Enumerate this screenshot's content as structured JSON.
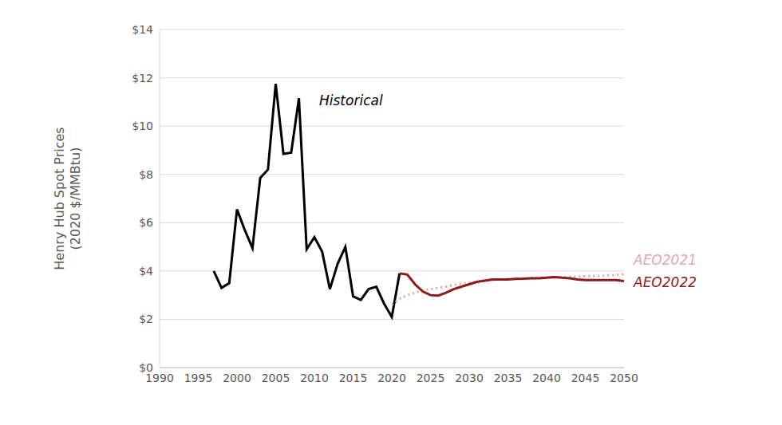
{
  "chart_data": {
    "type": "line",
    "ylabel": [
      "Henry Hub Spot Prices",
      "(2020 $/MMBtu)"
    ],
    "x": [
      1997,
      1998,
      1999,
      2000,
      2001,
      2002,
      2003,
      2004,
      2005,
      2006,
      2007,
      2008,
      2009,
      2010,
      2011,
      2012,
      2013,
      2014,
      2015,
      2016,
      2017,
      2018,
      2019,
      2020,
      2021,
      2022,
      2023,
      2024,
      2025,
      2026,
      2027,
      2028,
      2029,
      2030,
      2031,
      2032,
      2033,
      2034,
      2035,
      2036,
      2037,
      2038,
      2039,
      2040,
      2041,
      2042,
      2043,
      2044,
      2045,
      2046,
      2047,
      2048,
      2049,
      2050
    ],
    "series": [
      {
        "name": "Historical",
        "color": "#000000",
        "line_style": "solid",
        "values": [
          4.0,
          3.3,
          3.5,
          6.55,
          5.7,
          4.95,
          7.85,
          8.2,
          11.75,
          8.85,
          8.9,
          11.15,
          4.9,
          5.4,
          4.8,
          3.25,
          4.3,
          5.0,
          2.95,
          2.8,
          3.25,
          3.35,
          2.65,
          2.1,
          3.9,
          null,
          null,
          null,
          null,
          null,
          null,
          null,
          null,
          null,
          null,
          null,
          null,
          null,
          null,
          null,
          null,
          null,
          null,
          null,
          null,
          null,
          null,
          null,
          null,
          null,
          null,
          null,
          null,
          null
        ]
      },
      {
        "name": "AEO2021",
        "color": "#e8a3a9",
        "line_style": "dotted",
        "values": [
          null,
          null,
          null,
          null,
          null,
          null,
          null,
          null,
          null,
          null,
          null,
          null,
          null,
          null,
          null,
          null,
          null,
          null,
          null,
          null,
          null,
          null,
          null,
          2.6,
          2.85,
          3.0,
          3.1,
          3.2,
          3.25,
          3.3,
          3.35,
          3.42,
          3.48,
          3.52,
          3.56,
          3.6,
          3.62,
          3.65,
          3.67,
          3.68,
          3.7,
          3.7,
          3.72,
          3.73,
          3.74,
          3.75,
          3.76,
          3.77,
          3.78,
          3.8,
          3.8,
          3.82,
          3.84,
          3.87
        ]
      },
      {
        "name": "AEO2022",
        "color": "#8b1a1a",
        "line_style": "solid",
        "values": [
          null,
          null,
          null,
          null,
          null,
          null,
          null,
          null,
          null,
          null,
          null,
          null,
          null,
          null,
          null,
          null,
          null,
          null,
          null,
          null,
          null,
          null,
          null,
          null,
          3.9,
          3.85,
          3.45,
          3.15,
          3.0,
          2.98,
          3.1,
          3.25,
          3.35,
          3.45,
          3.55,
          3.6,
          3.65,
          3.65,
          3.65,
          3.67,
          3.68,
          3.7,
          3.7,
          3.72,
          3.75,
          3.72,
          3.7,
          3.65,
          3.62,
          3.62,
          3.62,
          3.62,
          3.62,
          3.58
        ]
      }
    ],
    "xlim": [
      1990,
      2050
    ],
    "xticks": [
      1990,
      1995,
      2000,
      2005,
      2010,
      2015,
      2020,
      2025,
      2030,
      2035,
      2040,
      2045,
      2050
    ],
    "ylim": [
      0,
      14
    ],
    "yticks": [
      {
        "value": 0,
        "label": "$0"
      },
      {
        "value": 2,
        "label": "$2"
      },
      {
        "value": 4,
        "label": "$4"
      },
      {
        "value": 6,
        "label": "$6"
      },
      {
        "value": 8,
        "label": "$8"
      },
      {
        "value": 10,
        "label": "$10"
      },
      {
        "value": 12,
        "label": "$12"
      },
      {
        "value": 14,
        "label": "$14"
      }
    ],
    "grid": true,
    "marker": "none"
  }
}
